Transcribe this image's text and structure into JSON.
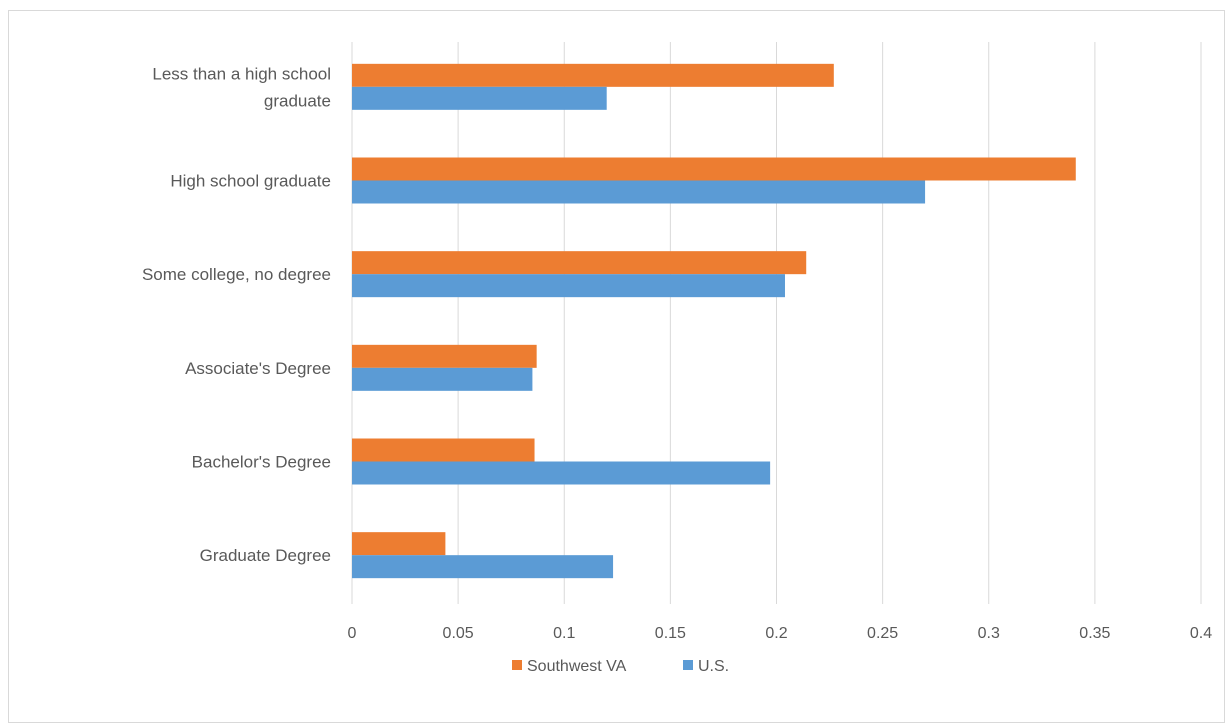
{
  "chart_data": {
    "type": "bar",
    "orientation": "horizontal",
    "categories": [
      "Less than a high school graduate",
      "High school graduate",
      "Some college, no degree",
      "Associate's Degree",
      "Bachelor's Degree",
      "Graduate Degree"
    ],
    "category_label_lines": [
      [
        "Less than a high school",
        "graduate"
      ],
      [
        "High school graduate"
      ],
      [
        "Some college, no degree"
      ],
      [
        "Associate's Degree"
      ],
      [
        "Bachelor's Degree"
      ],
      [
        "Graduate Degree"
      ]
    ],
    "series": [
      {
        "name": "Southwest VA",
        "color": "#ed7d31",
        "values": [
          0.227,
          0.341,
          0.214,
          0.087,
          0.086,
          0.044
        ]
      },
      {
        "name": "U.S.",
        "color": "#5b9bd5",
        "values": [
          0.12,
          0.27,
          0.204,
          0.085,
          0.197,
          0.123
        ]
      }
    ],
    "xlim": [
      0,
      0.4
    ],
    "x_ticks": [
      "0",
      "0.05",
      "0.1",
      "0.15",
      "0.2",
      "0.25",
      "0.3",
      "0.35",
      "0.4"
    ],
    "title": "",
    "xlabel": "",
    "ylabel": "",
    "grid": "vertical",
    "legend_position": "bottom"
  }
}
